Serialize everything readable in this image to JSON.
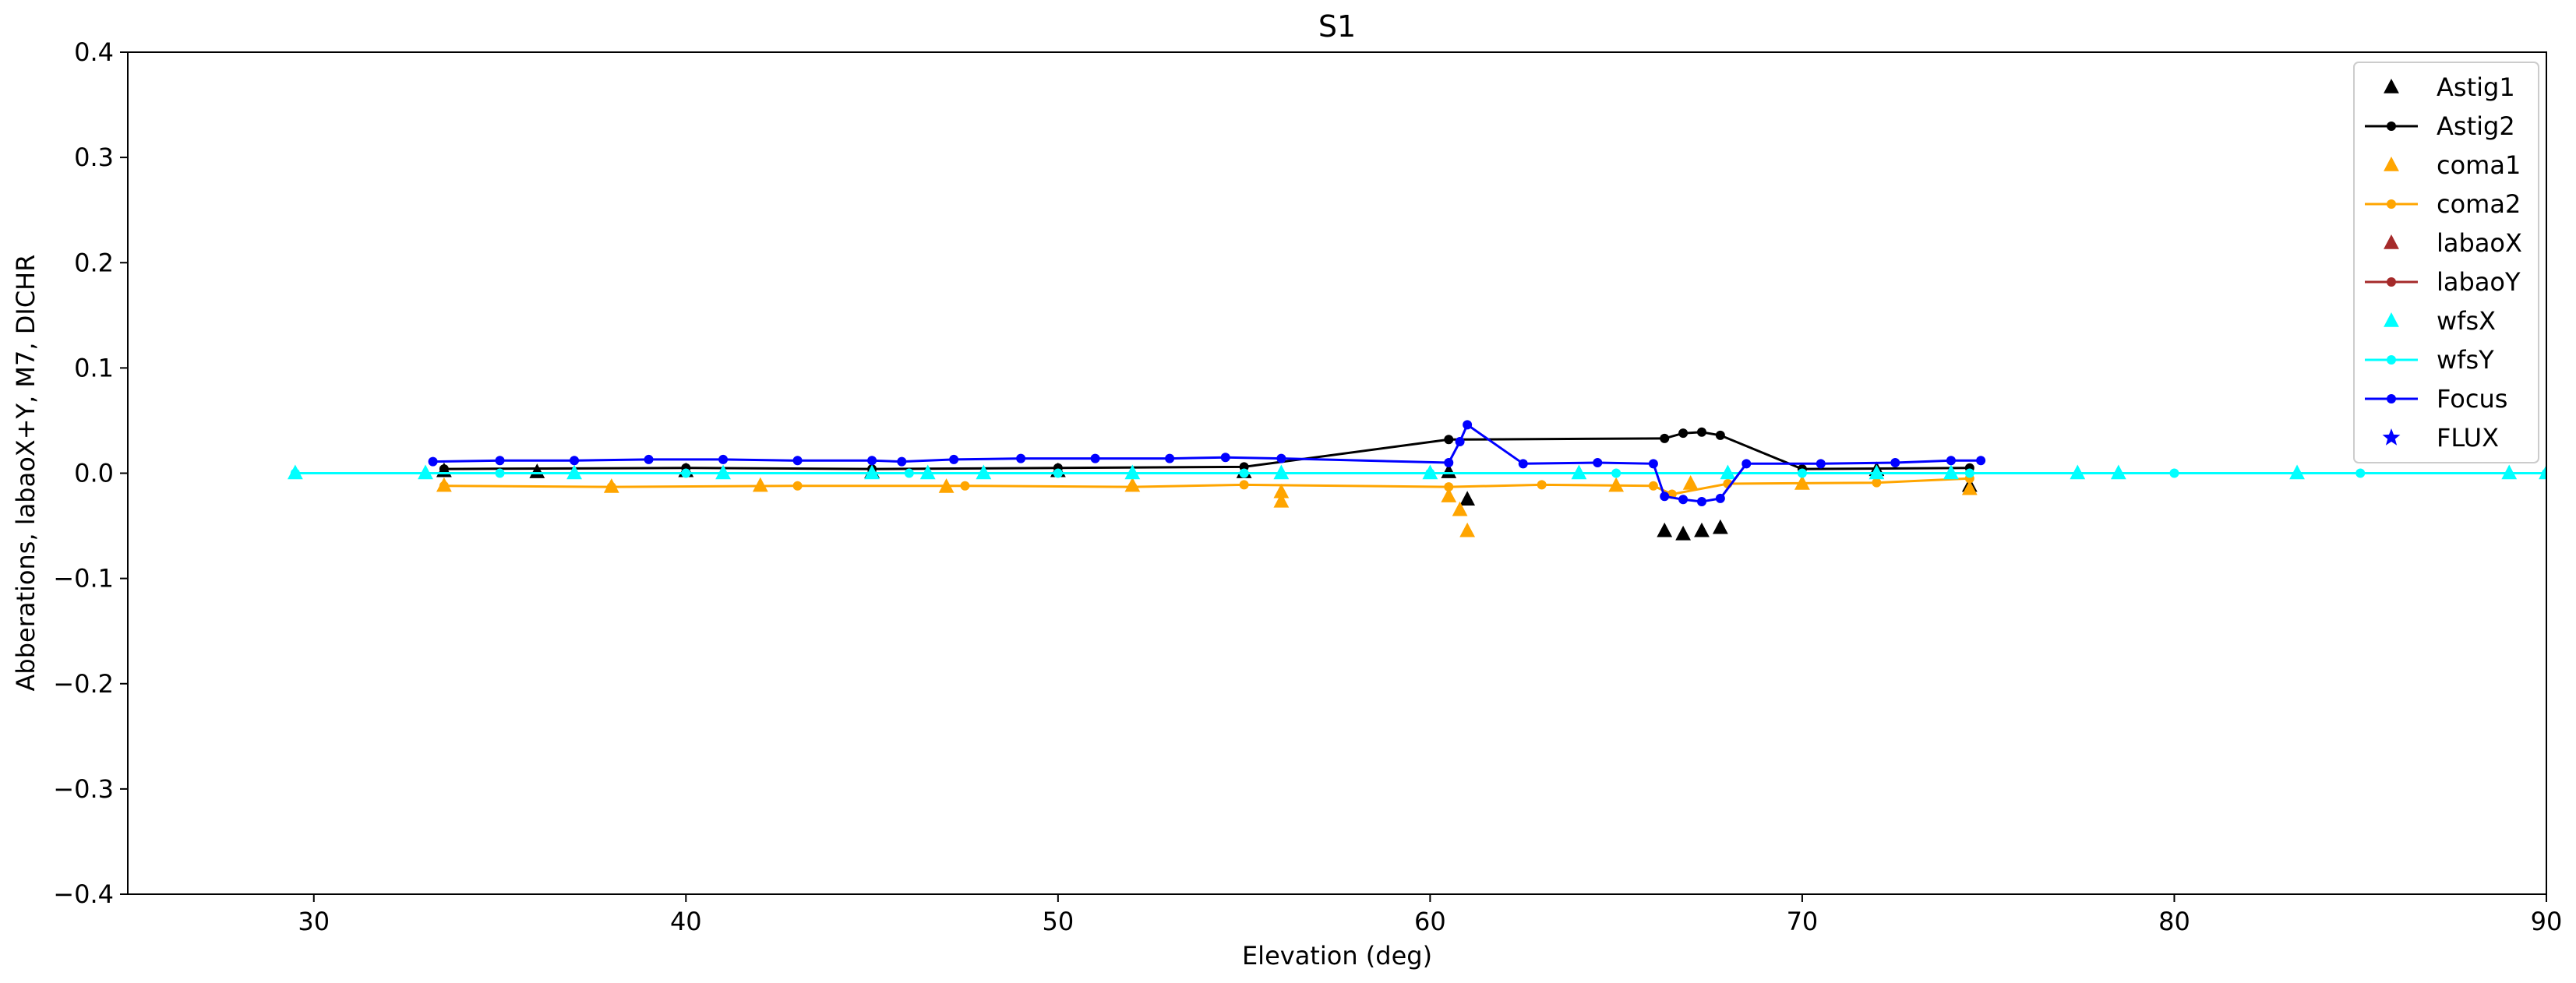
{
  "chart_data": {
    "type": "line",
    "title": "S1",
    "xlabel": "Elevation (deg)",
    "ylabel": "Abberations, labaoX+Y, M7, DICHR",
    "xlim": [
      25,
      90
    ],
    "ylim": [
      -0.4,
      0.4
    ],
    "xticks": [
      30,
      40,
      50,
      60,
      70,
      80,
      90
    ],
    "yticks": [
      -0.4,
      -0.3,
      -0.2,
      -0.1,
      0.0,
      0.1,
      0.2,
      0.3,
      0.4
    ],
    "xtick_labels": [
      "30",
      "40",
      "50",
      "60",
      "70",
      "80",
      "90"
    ],
    "ytick_labels": [
      "−0.4",
      "−0.3",
      "−0.2",
      "−0.1",
      "0.0",
      "0.1",
      "0.2",
      "0.3",
      "0.4"
    ],
    "grid": false,
    "legend_position": "top-right",
    "series": [
      {
        "name": "Astig1",
        "marker": "triangle",
        "line": false,
        "color": "#000000",
        "x": [
          33.5,
          36.0,
          40.0,
          45.0,
          50.0,
          55.0,
          60.5,
          61.0,
          66.3,
          66.8,
          67.3,
          67.8,
          72.0,
          74.5
        ],
        "y": [
          0.002,
          0.001,
          0.002,
          0.001,
          0.002,
          0.001,
          0.001,
          -0.025,
          -0.055,
          -0.058,
          -0.055,
          -0.052,
          0.003,
          -0.012
        ]
      },
      {
        "name": "Astig2",
        "marker": "dot",
        "line": true,
        "color": "#000000",
        "x": [
          33.5,
          40.0,
          45.0,
          50.0,
          55.0,
          60.5,
          66.3,
          66.8,
          67.3,
          67.8,
          70.0,
          74.5
        ],
        "y": [
          0.004,
          0.005,
          0.004,
          0.005,
          0.006,
          0.032,
          0.033,
          0.038,
          0.039,
          0.036,
          0.004,
          0.005
        ]
      },
      {
        "name": "coma1",
        "marker": "triangle",
        "line": false,
        "color": "#ffa500",
        "x": [
          33.5,
          38.0,
          42.0,
          47.0,
          52.0,
          56.0,
          56.0,
          60.5,
          60.8,
          61.0,
          65.0,
          67.0,
          70.0,
          74.5
        ],
        "y": [
          -0.012,
          -0.013,
          -0.012,
          -0.013,
          -0.012,
          -0.018,
          -0.027,
          -0.022,
          -0.035,
          -0.055,
          -0.012,
          -0.01,
          -0.01,
          -0.015
        ]
      },
      {
        "name": "coma2",
        "marker": "dot",
        "line": true,
        "color": "#ffa500",
        "x": [
          33.5,
          38.0,
          43.0,
          47.5,
          52.0,
          55.0,
          60.5,
          63.0,
          66.0,
          66.5,
          68.0,
          72.0,
          74.5
        ],
        "y": [
          -0.012,
          -0.013,
          -0.012,
          -0.012,
          -0.013,
          -0.011,
          -0.013,
          -0.011,
          -0.012,
          -0.02,
          -0.01,
          -0.009,
          -0.005
        ]
      },
      {
        "name": "labaoX",
        "marker": "triangle",
        "line": false,
        "color": "#a52a2a",
        "x": [],
        "y": []
      },
      {
        "name": "labaoY",
        "marker": "dot",
        "line": true,
        "color": "#a52a2a",
        "x": [],
        "y": []
      },
      {
        "name": "wfsX",
        "marker": "triangle",
        "line": false,
        "color": "#00ffff",
        "x": [
          29.5,
          33.0,
          37.0,
          41.0,
          45.0,
          46.5,
          48.0,
          52.0,
          56.0,
          60.0,
          64.0,
          68.0,
          72.0,
          74.0,
          77.4,
          78.5,
          83.3,
          89.0,
          90.0
        ],
        "y": [
          0.0,
          0.0,
          0.0,
          0.0,
          0.0,
          0.0,
          0.0,
          0.0,
          0.0,
          0.0,
          0.0,
          0.0,
          0.0,
          0.0,
          0.0,
          0.0,
          0.0,
          0.0,
          0.0
        ]
      },
      {
        "name": "wfsY",
        "marker": "dot",
        "line": true,
        "color": "#00ffff",
        "x": [
          29.5,
          35.0,
          40.0,
          46.0,
          50.0,
          55.0,
          60.0,
          65.0,
          70.0,
          74.5,
          80.0,
          85.0,
          90.0
        ],
        "y": [
          0.0,
          0.0,
          0.0,
          0.0,
          0.0,
          0.0,
          0.0,
          0.0,
          0.0,
          0.0,
          0.0,
          0.0,
          0.0
        ]
      },
      {
        "name": "Focus",
        "marker": "dot",
        "line": true,
        "color": "#0000ff",
        "x": [
          33.2,
          35.0,
          37.0,
          39.0,
          41.0,
          43.0,
          45.0,
          45.8,
          47.2,
          49.0,
          51.0,
          53.0,
          54.5,
          56.0,
          60.5,
          60.8,
          61.0,
          62.5,
          64.5,
          66.0,
          66.3,
          66.8,
          67.3,
          67.8,
          68.5,
          70.5,
          72.5,
          74.0,
          74.8
        ],
        "y": [
          0.011,
          0.012,
          0.012,
          0.013,
          0.013,
          0.012,
          0.012,
          0.011,
          0.013,
          0.014,
          0.014,
          0.014,
          0.015,
          0.014,
          0.01,
          0.03,
          0.046,
          0.009,
          0.01,
          0.009,
          -0.022,
          -0.025,
          -0.027,
          -0.024,
          0.009,
          0.009,
          0.01,
          0.012,
          0.012
        ]
      },
      {
        "name": "FLUX",
        "marker": "star",
        "line": false,
        "color": "#0000ff",
        "x": [],
        "y": []
      }
    ]
  }
}
